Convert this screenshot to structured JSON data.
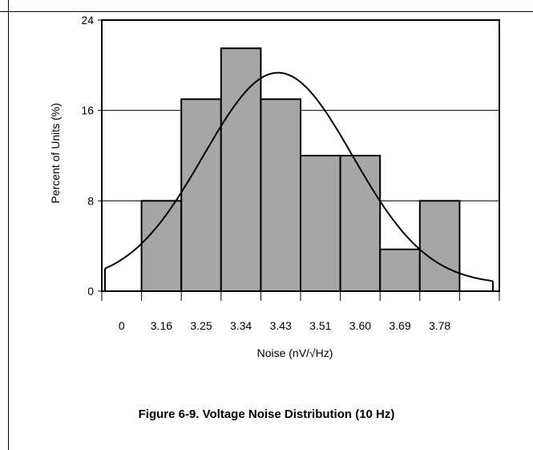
{
  "chart_data": {
    "type": "bar",
    "categories": [
      "0",
      "3.16",
      "3.25",
      "3.34",
      "3.43",
      "3.51",
      "3.60",
      "3.69",
      "3.78"
    ],
    "values": [
      0,
      8,
      17,
      21.5,
      17,
      12,
      12,
      3.7,
      8
    ],
    "ylabel": "Percent of Units (%)",
    "xlabel": "Noise (nV/√Hz)",
    "yticks": [
      0,
      8,
      16,
      24
    ],
    "ylim": [
      0,
      24
    ],
    "grid": true,
    "bar_color": "#a6a6a6",
    "curve": {
      "type": "normal-fit",
      "peak_value": 19.4,
      "start_value": 2.0,
      "end_value": 0.9
    }
  },
  "caption": "Figure 6-9. Voltage Noise Distribution (10 Hz)"
}
